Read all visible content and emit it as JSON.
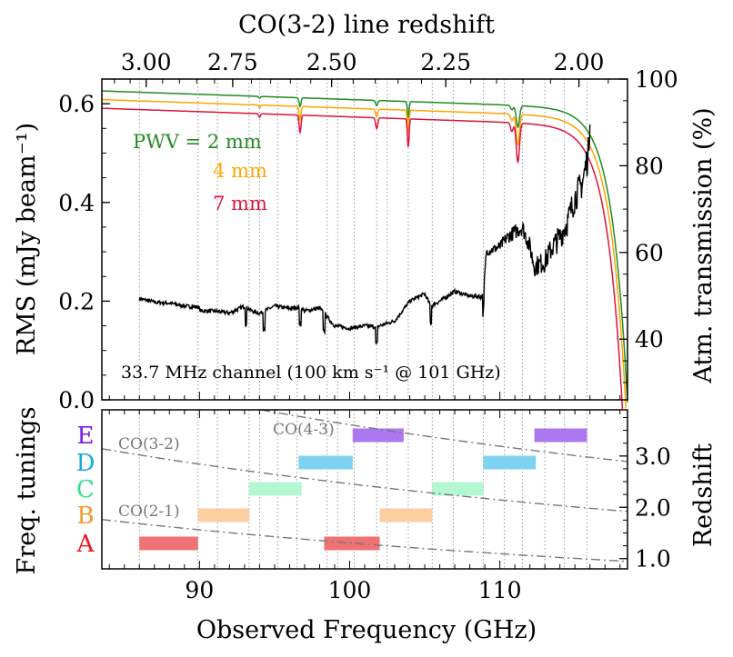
{
  "chart_data": [
    {
      "type": "line",
      "xlabel": "Observed Frequency (GHz)",
      "xlim": [
        83.5,
        118.5
      ],
      "top_axis": {
        "label": "CO(3-2) line redshift",
        "ticks": [
          3.0,
          2.75,
          2.5,
          2.25,
          2.0
        ],
        "tick_labels": [
          "3.00",
          "2.75",
          "2.50",
          "2.25",
          "2.00"
        ]
      },
      "ylabel": "RMS (mJy beam⁻¹)",
      "ylim": [
        0.0,
        0.65
      ],
      "yticks": [
        0.0,
        0.2,
        0.4,
        0.6
      ],
      "ytick_labels": [
        "0.0",
        "0.2",
        "0.4",
        "0.6"
      ],
      "y2label": "Atm. transmission (%)",
      "y2lim": [
        26,
        100
      ],
      "y2ticks": [
        40,
        60,
        80,
        100
      ],
      "y2tick_labels": [
        "40",
        "60",
        "80",
        "100"
      ],
      "annotation": "33.7 MHz channel (100 km s⁻¹ @ 101 GHz)",
      "series": [
        {
          "name": "PWV = 2 mm",
          "label": "PWV = 2 mm",
          "color": "#228B22",
          "axis": "right",
          "base": 97.2,
          "line_depths": [
            0.4,
            2.0,
            1.2,
            3.5,
            1.0,
            5.0
          ],
          "cutoff_x": 118.0
        },
        {
          "name": "4 mm",
          "label": "4 mm",
          "color": "#FFA500",
          "axis": "right",
          "base": 95.2,
          "line_depths": [
            0.6,
            3.0,
            1.8,
            5.0,
            1.5,
            7.0
          ],
          "cutoff_x": 117.9
        },
        {
          "name": "7 mm",
          "label": "7 mm",
          "color": "#DC143C",
          "axis": "right",
          "base": 93.2,
          "line_depths": [
            0.8,
            4.0,
            2.5,
            6.5,
            2.0,
            9.0
          ],
          "cutoff_x": 117.7
        },
        {
          "name": "RMS",
          "color": "#000000",
          "axis": "left",
          "x": [
            86.0,
            87.0,
            88.0,
            89.0,
            89.9,
            90.1,
            91.0,
            92.0,
            93.0,
            93.5,
            94.0,
            95.0,
            96.0,
            96.7,
            97.0,
            98.0,
            99.0,
            100.0,
            101.0,
            101.8,
            102.0,
            103.0,
            104.0,
            105.0,
            105.4,
            106.0,
            107.0,
            108.0,
            108.9,
            109.1,
            110.0,
            110.5,
            111.0,
            111.5,
            112.0,
            112.3,
            113.0,
            113.5,
            114.0,
            114.5,
            115.0,
            115.5,
            115.9,
            116.0
          ],
          "values": [
            0.205,
            0.198,
            0.196,
            0.19,
            0.188,
            0.18,
            0.18,
            0.176,
            0.19,
            0.18,
            0.175,
            0.19,
            0.185,
            0.188,
            0.18,
            0.186,
            0.15,
            0.145,
            0.15,
            0.148,
            0.15,
            0.16,
            0.2,
            0.215,
            0.19,
            0.2,
            0.22,
            0.21,
            0.21,
            0.3,
            0.31,
            0.33,
            0.34,
            0.35,
            0.31,
            0.27,
            0.28,
            0.31,
            0.33,
            0.36,
            0.41,
            0.44,
            0.5,
            0.58
          ]
        }
      ],
      "vertical_dotted_lines": [
        86.0,
        89.9,
        91.2,
        93.3,
        94.0,
        95.2,
        96.5,
        98.5,
        99.2,
        100.3,
        101.8,
        102.5,
        103.9,
        105.5,
        106.9,
        108.9,
        110.3,
        111.5,
        113.0,
        114.3,
        115.8
      ],
      "spike_positions": [
        93.1,
        94.3,
        96.7,
        98.3,
        101.8,
        105.4,
        108.9
      ],
      "spike_depth": 0.035
    },
    {
      "type": "bar",
      "ylabel": "Freq. tunings",
      "y2label": "Redshift",
      "y2lim": [
        0.8,
        3.9
      ],
      "y2ticks": [
        1.0,
        2.0,
        3.0
      ],
      "y2tick_labels": [
        "1.0",
        "2.0",
        "3.0"
      ],
      "categories": [
        "A",
        "B",
        "C",
        "D",
        "E"
      ],
      "category_colors": [
        "#e8151b",
        "#f39b30",
        "#2fe08e",
        "#1aa8e0",
        "#7a1be3"
      ],
      "tunings": [
        {
          "name": "A",
          "ranges": [
            [
              86.0,
              89.9
            ],
            [
              98.3,
              102.0
            ]
          ],
          "color": "#f07275"
        },
        {
          "name": "B",
          "ranges": [
            [
              89.9,
              93.3
            ],
            [
              102.0,
              105.5
            ]
          ],
          "color": "#fbcfa1"
        },
        {
          "name": "C",
          "ranges": [
            [
              93.3,
              96.8
            ],
            [
              105.5,
              108.9
            ]
          ],
          "color": "#b4f7d3"
        },
        {
          "name": "D",
          "ranges": [
            [
              96.6,
              100.2
            ],
            [
              108.9,
              112.4
            ]
          ],
          "color": "#7fd3f0"
        },
        {
          "name": "E",
          "ranges": [
            [
              100.2,
              103.6
            ],
            [
              112.3,
              115.8
            ]
          ],
          "color": "#ab78ef"
        }
      ],
      "curves": [
        {
          "label": "CO(2-1)",
          "rest_freq": 230.538
        },
        {
          "label": "CO(3-2)",
          "rest_freq": 345.796
        },
        {
          "label": "CO(4-3)",
          "rest_freq": 461.041
        }
      ]
    }
  ]
}
